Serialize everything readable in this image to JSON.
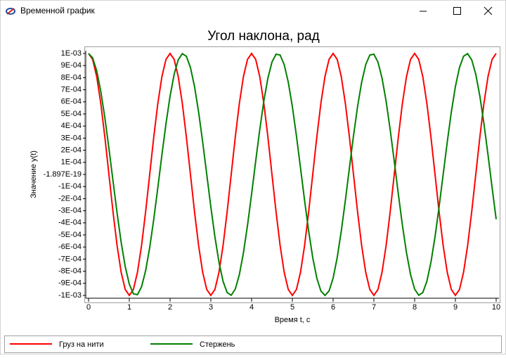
{
  "window": {
    "title": "Временной график"
  },
  "chart_data": {
    "type": "line",
    "title": "Угол наклона, рад",
    "xlabel": "Время t, c",
    "ylabel": "Значение y(t)",
    "x": [
      0,
      0.1,
      0.2,
      0.3,
      0.4,
      0.5,
      0.6,
      0.7,
      0.8,
      0.9,
      1,
      1.1,
      1.2,
      1.3,
      1.4,
      1.5,
      1.6,
      1.7,
      1.8,
      1.9,
      2,
      2.1,
      2.2,
      2.3,
      2.4,
      2.5,
      2.6,
      2.7,
      2.8,
      2.9,
      3,
      3.1,
      3.2,
      3.3,
      3.4,
      3.5,
      3.6,
      3.7,
      3.8,
      3.9,
      4,
      4.1,
      4.2,
      4.3,
      4.4,
      4.5,
      4.6,
      4.7,
      4.8,
      4.9,
      5,
      5.1,
      5.2,
      5.3,
      5.4,
      5.5,
      5.6,
      5.7,
      5.8,
      5.9,
      6,
      6.1,
      6.2,
      6.3,
      6.4,
      6.5,
      6.6,
      6.7,
      6.8,
      6.9,
      7,
      7.1,
      7.2,
      7.3,
      7.4,
      7.5,
      7.6,
      7.7,
      7.8,
      7.9,
      8,
      8.1,
      8.2,
      8.3,
      8.4,
      8.5,
      8.6,
      8.7,
      8.8,
      8.9,
      9,
      9.1,
      9.2,
      9.3,
      9.4,
      9.5,
      9.6,
      9.7,
      9.8,
      9.9,
      10
    ],
    "series": [
      {
        "name": "Груз на нити",
        "color": "#ff0000",
        "values": [
          0.001,
          0.0009511,
          0.000809,
          0.0005878,
          0.000309,
          0,
          -0.000309,
          -0.0005878,
          -0.000809,
          -0.0009511,
          -0.001,
          -0.0009511,
          -0.000809,
          -0.0005878,
          -0.000309,
          0,
          0.000309,
          0.0005878,
          0.000809,
          0.0009511,
          0.001,
          0.0009511,
          0.000809,
          0.0005878,
          0.000309,
          0,
          -0.000309,
          -0.0005878,
          -0.000809,
          -0.0009511,
          -0.001,
          -0.0009511,
          -0.000809,
          -0.0005878,
          -0.000309,
          0,
          0.000309,
          0.0005878,
          0.000809,
          0.0009511,
          0.001,
          0.0009511,
          0.000809,
          0.0005878,
          0.000309,
          0,
          -0.000309,
          -0.0005878,
          -0.000809,
          -0.0009511,
          -0.001,
          -0.0009511,
          -0.000809,
          -0.0005878,
          -0.000309,
          0,
          0.000309,
          0.0005878,
          0.000809,
          0.0009511,
          0.001,
          0.0009511,
          0.000809,
          0.0005878,
          0.000309,
          0,
          -0.000309,
          -0.0005878,
          -0.000809,
          -0.0009511,
          -0.001,
          -0.0009511,
          -0.000809,
          -0.0005878,
          -0.000309,
          0,
          0.000309,
          0.0005878,
          0.000809,
          0.0009511,
          0.001,
          0.0009511,
          0.000809,
          0.0005878,
          0.000309,
          0,
          -0.000309,
          -0.0005878,
          -0.000809,
          -0.0009511,
          -0.001,
          -0.0009511,
          -0.000809,
          -0.0005878,
          -0.000309,
          0,
          0.000309,
          0.0005878,
          0.000809,
          0.0009511,
          0.001
        ]
      },
      {
        "name": "Стержень",
        "color": "#008000",
        "values": [
          0.001,
          0.0009636,
          0.0008568,
          0.0006876,
          0.0004683,
          0.000215,
          -5.41e-05,
          -0.0003193,
          -0.0005612,
          -0.0007622,
          -0.0009076,
          -0.0009868,
          -0.0009941,
          -0.000929,
          -0.000796,
          -0.0006054,
          -0.0003701,
          -0.0001081,
          0.0001618,
          0.0004199,
          0.0006473,
          0.0008277,
          0.0009476,
          0.0009985,
          0.0009766,
          0.0008835,
          0.0007262,
          0.0005155,
          0.0002675,
          0,
          -0.0002675,
          -0.0005155,
          -0.0007262,
          -0.0008835,
          -0.0009766,
          -0.0009985,
          -0.0009476,
          -0.0008277,
          -0.0006473,
          -0.0004199,
          -0.0001618,
          0.0001081,
          0.0003701,
          0.0006054,
          0.000796,
          0.000929,
          0.0009941,
          0.0009868,
          0.0009076,
          0.0007622,
          0.0005612,
          0.0003193,
          5.41e-05,
          -0.000215,
          -0.0004683,
          -0.0006876,
          -0.0008568,
          -0.0009636,
          -0.001,
          -0.0009636,
          -0.0008568,
          -0.0006876,
          -0.0004683,
          -0.000215,
          5.41e-05,
          0.0003193,
          0.0005612,
          0.0007622,
          0.0009076,
          0.0009868,
          0.0009941,
          0.000929,
          0.000796,
          0.0006054,
          0.0003701,
          0.0001081,
          -0.0001618,
          -0.0004199,
          -0.0006473,
          -0.0008277,
          -0.0009476,
          -0.0009985,
          -0.0009766,
          -0.0008835,
          -0.0007262,
          -0.0005155,
          -0.0002675,
          0,
          0.0002675,
          0.0005155,
          0.0007262,
          0.0008835,
          0.0009766,
          0.0009985,
          0.0009476,
          0.0008277,
          0.0006473,
          0.0004199,
          0.0001618,
          -0.0001081,
          -0.0003701
        ]
      }
    ],
    "xlim": [
      0,
      10
    ],
    "xticks": [
      0,
      1,
      2,
      3,
      4,
      5,
      6,
      7,
      8,
      9,
      10
    ],
    "ylim": [
      -0.001,
      0.001
    ],
    "yticks": [
      {
        "value": 0.001,
        "label": "1E-03"
      },
      {
        "value": 0.0009,
        "label": "9E-04"
      },
      {
        "value": 0.0008,
        "label": "8E-04"
      },
      {
        "value": 0.0007,
        "label": "7E-04"
      },
      {
        "value": 0.0006,
        "label": "6E-04"
      },
      {
        "value": 0.0005,
        "label": "5E-04"
      },
      {
        "value": 0.0004,
        "label": "4E-04"
      },
      {
        "value": 0.0003,
        "label": "3E-04"
      },
      {
        "value": 0.0002,
        "label": "2E-04"
      },
      {
        "value": 0.0001,
        "label": "1E-04"
      },
      {
        "value": -1.897e-19,
        "label": "-1.897E-19"
      },
      {
        "value": -0.0001,
        "label": "-1E-04"
      },
      {
        "value": -0.0002,
        "label": "-2E-04"
      },
      {
        "value": -0.0003,
        "label": "-3E-04"
      },
      {
        "value": -0.0004,
        "label": "-4E-04"
      },
      {
        "value": -0.0005,
        "label": "-5E-04"
      },
      {
        "value": -0.0006,
        "label": "-6E-04"
      },
      {
        "value": -0.0007,
        "label": "-7E-04"
      },
      {
        "value": -0.0008,
        "label": "-8E-04"
      },
      {
        "value": -0.0009,
        "label": "-9E-04"
      },
      {
        "value": -0.001,
        "label": "-1E-03"
      }
    ],
    "grid": false
  }
}
